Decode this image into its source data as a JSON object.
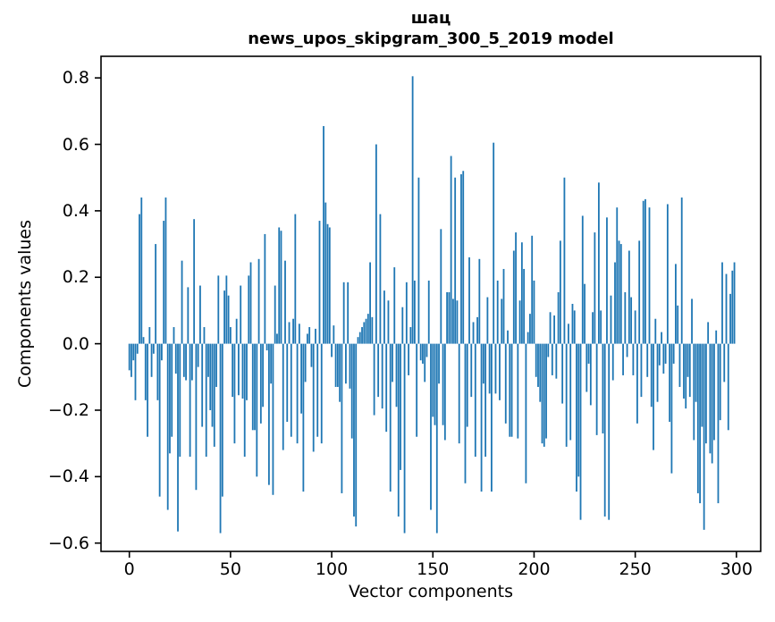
{
  "figure": {
    "title_line1": "шац",
    "title_line2": "news_upos_skipgram_300_5_2019 model",
    "xlabel": "Vector components",
    "ylabel": "Components values",
    "bar_color": "#1f77b4",
    "axis_color": "#000000",
    "background_color": "#ffffff"
  },
  "chart_data": {
    "type": "bar",
    "title": "шац\nnews_upos_skipgram_300_5_2019 model",
    "xlabel": "Vector components",
    "ylabel": "Components values",
    "legend": null,
    "grid": false,
    "bar_color": "#1f77b4",
    "bar_width": 0.8,
    "xlim": [
      -14,
      312
    ],
    "ylim": [
      -0.625,
      0.865
    ],
    "xticks": [
      0,
      50,
      100,
      150,
      200,
      250,
      300
    ],
    "xtick_labels": [
      "0",
      "50",
      "100",
      "150",
      "200",
      "250",
      "300"
    ],
    "yticks": [
      0.8,
      0.6,
      0.4,
      0.2,
      0.0,
      -0.2,
      -0.4,
      -0.6
    ],
    "ytick_labels": [
      "0.8",
      "0.6",
      "0.4",
      "0.2",
      "0.0",
      "−0.2",
      "−0.4",
      "−0.6"
    ],
    "x_is_index": true,
    "n_components": 300,
    "values": [
      -0.08,
      -0.1,
      -0.05,
      -0.17,
      -0.03,
      0.39,
      0.44,
      0.02,
      -0.17,
      -0.28,
      0.05,
      -0.1,
      -0.03,
      0.3,
      -0.17,
      -0.46,
      -0.05,
      0.37,
      0.44,
      -0.5,
      -0.33,
      -0.28,
      0.05,
      -0.09,
      -0.565,
      -0.34,
      0.25,
      -0.1,
      -0.11,
      0.17,
      -0.34,
      -0.11,
      0.375,
      -0.44,
      -0.07,
      0.175,
      -0.25,
      0.05,
      -0.34,
      -0.1,
      -0.2,
      -0.25,
      -0.31,
      -0.13,
      0.205,
      -0.57,
      -0.46,
      0.16,
      0.205,
      0.145,
      0.05,
      -0.16,
      -0.3,
      0.075,
      -0.155,
      0.175,
      -0.165,
      -0.34,
      -0.17,
      0.205,
      0.245,
      -0.26,
      -0.26,
      -0.4,
      0.255,
      -0.24,
      -0.19,
      0.33,
      -0.02,
      -0.425,
      -0.12,
      -0.455,
      0.175,
      0.03,
      0.35,
      0.34,
      -0.32,
      0.25,
      -0.235,
      0.065,
      -0.28,
      0.075,
      0.39,
      -0.3,
      0.06,
      -0.21,
      -0.445,
      -0.115,
      0.03,
      0.05,
      -0.07,
      -0.325,
      0.045,
      -0.28,
      0.37,
      -0.3,
      0.655,
      0.425,
      0.36,
      0.35,
      -0.04,
      0.055,
      -0.13,
      -0.13,
      -0.175,
      -0.45,
      0.185,
      -0.12,
      0.185,
      -0.135,
      -0.285,
      -0.52,
      -0.55,
      0.02,
      0.035,
      0.05,
      0.065,
      0.075,
      0.09,
      0.245,
      0.08,
      -0.215,
      0.6,
      -0.16,
      0.39,
      -0.195,
      0.16,
      -0.265,
      0.13,
      -0.445,
      -0.115,
      0.23,
      -0.19,
      -0.52,
      -0.38,
      0.11,
      -0.57,
      0.185,
      -0.095,
      0.05,
      0.805,
      0.19,
      -0.28,
      0.5,
      -0.05,
      -0.06,
      -0.115,
      -0.04,
      0.19,
      -0.5,
      -0.22,
      -0.245,
      -0.57,
      -0.12,
      0.345,
      -0.245,
      -0.29,
      0.155,
      0.155,
      0.565,
      0.135,
      0.5,
      0.13,
      -0.3,
      0.51,
      0.52,
      -0.42,
      -0.25,
      0.26,
      -0.16,
      0.065,
      -0.34,
      0.08,
      0.255,
      -0.445,
      -0.12,
      -0.34,
      0.14,
      -0.15,
      -0.445,
      0.605,
      -0.15,
      0.19,
      -0.17,
      0.135,
      0.225,
      -0.24,
      0.04,
      -0.28,
      -0.28,
      0.28,
      0.335,
      -0.285,
      0.13,
      0.305,
      0.225,
      -0.42,
      0.035,
      0.09,
      0.325,
      0.19,
      -0.1,
      -0.13,
      -0.175,
      -0.3,
      -0.31,
      -0.285,
      -0.04,
      0.095,
      -0.095,
      0.085,
      -0.105,
      0.155,
      0.31,
      -0.18,
      0.5,
      -0.31,
      0.06,
      -0.29,
      0.12,
      0.1,
      -0.445,
      -0.4,
      -0.53,
      0.385,
      0.18,
      -0.145,
      -0.06,
      -0.185,
      0.095,
      0.335,
      -0.275,
      0.485,
      0.1,
      -0.27,
      -0.52,
      0.38,
      -0.53,
      0.145,
      -0.11,
      0.245,
      0.41,
      0.31,
      0.3,
      -0.095,
      0.155,
      -0.04,
      0.28,
      0.14,
      -0.095,
      0.1,
      -0.24,
      0.31,
      -0.16,
      0.43,
      0.435,
      -0.1,
      0.41,
      -0.19,
      -0.32,
      0.075,
      -0.175,
      -0.065,
      0.035,
      -0.09,
      -0.06,
      0.42,
      -0.235,
      -0.39,
      -0.06,
      0.24,
      0.115,
      -0.13,
      0.44,
      -0.165,
      -0.195,
      -0.1,
      -0.16,
      0.135,
      -0.29,
      -0.175,
      -0.45,
      -0.48,
      -0.25,
      -0.56,
      -0.3,
      0.065,
      -0.33,
      -0.36,
      -0.29,
      0.04,
      -0.48,
      -0.23,
      0.245,
      -0.115,
      0.21,
      -0.26,
      0.15,
      0.22,
      0.245
    ]
  }
}
